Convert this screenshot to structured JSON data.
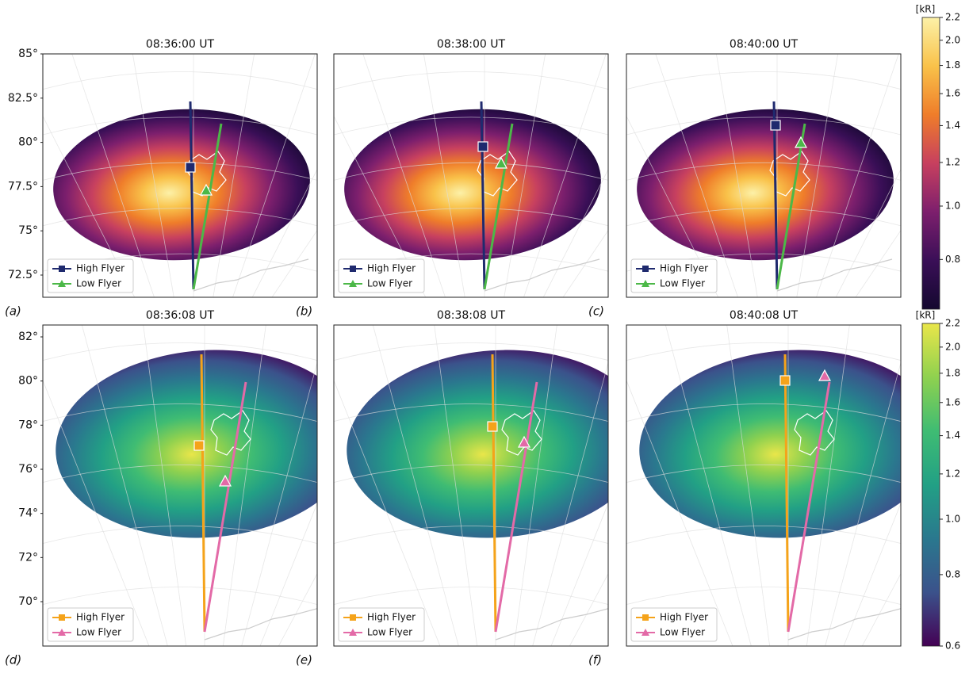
{
  "figure": {
    "rows": [
      {
        "colormap": [
          "#fcf1a8",
          "#f9c24a",
          "#ef7d2a",
          "#c7405f",
          "#7d1f6d",
          "#3a0f57",
          "#14082f"
        ],
        "high_color": "#1f2a6e",
        "low_color": "#4cb848",
        "legend": [
          "High Flyer",
          "Low Flyer"
        ],
        "lat_ticks": [
          {
            "value": 85,
            "label": "85°"
          },
          {
            "value": 82.5,
            "label": "82.5°"
          },
          {
            "value": 80,
            "label": "80°"
          },
          {
            "value": 77.5,
            "label": "77.5°"
          },
          {
            "value": 75,
            "label": "75°"
          },
          {
            "value": 72.5,
            "label": "72.5°"
          }
        ],
        "colorbar": {
          "unit": "[kR]",
          "scale": "log",
          "lim": [
            0.65,
            2.2
          ],
          "ticks": [
            0.8,
            {
              "value": 1,
              "label": "1.0"
            },
            1.2,
            1.4,
            1.6,
            1.8,
            {
              "value": 2,
              "label": "2.0"
            },
            2.2
          ]
        },
        "panels": [
          {
            "title": "08:36:00 UT",
            "label": "(a)"
          },
          {
            "title": "08:38:00 UT",
            "label": "(b)"
          },
          {
            "title": "08:40:00 UT",
            "label": "(c)"
          }
        ]
      },
      {
        "colormap": [
          "#e9e64a",
          "#8fd14f",
          "#3fbc73",
          "#22a085",
          "#2a788e",
          "#3b528b",
          "#440154"
        ],
        "high_color": "#f5a31a",
        "low_color": "#e36aa7",
        "legend": [
          "High Flyer",
          "Low Flyer"
        ],
        "lat_ticks": [
          {
            "value": 82,
            "label": "82°"
          },
          {
            "value": 80,
            "label": "80°"
          },
          {
            "value": 78,
            "label": "78°"
          },
          {
            "value": 76,
            "label": "76°"
          },
          {
            "value": 74,
            "label": "74°"
          },
          {
            "value": 72,
            "label": "72°"
          },
          {
            "value": 70,
            "label": "70°"
          }
        ],
        "colorbar": {
          "unit": "[kR]",
          "scale": "log",
          "lim": [
            0.6,
            2.2
          ],
          "ticks": [
            0.6,
            0.8,
            {
              "value": 1,
              "label": "1.0"
            },
            1.2,
            1.4,
            1.6,
            1.8,
            {
              "value": 2,
              "label": "2.0"
            },
            2.2
          ]
        },
        "panels": [
          {
            "title": "08:36:08 UT",
            "label": "(d)"
          },
          {
            "title": "08:38:08 UT",
            "label": "(e)"
          },
          {
            "title": "08:40:08 UT",
            "label": "(f)"
          }
        ]
      }
    ]
  }
}
